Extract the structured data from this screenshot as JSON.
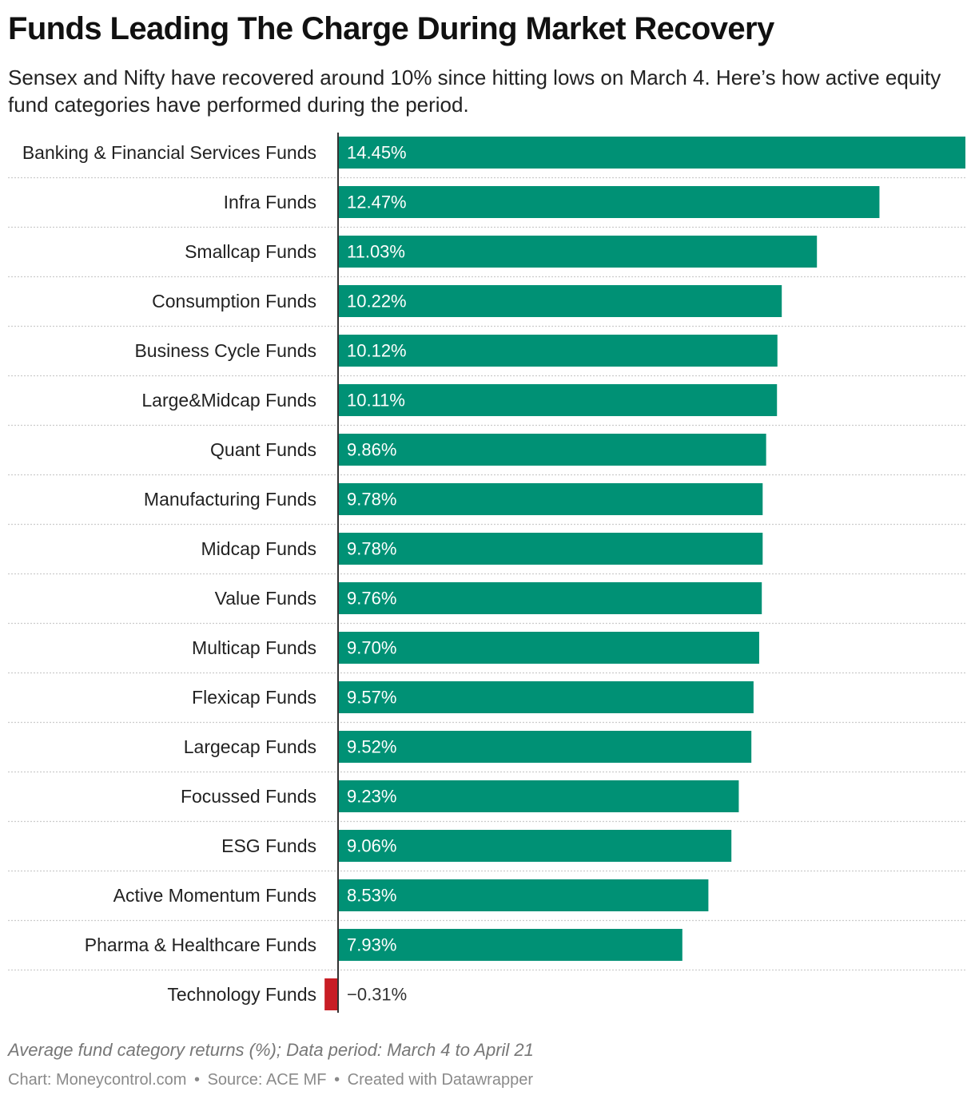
{
  "title": "Funds Leading The Charge During Market Recovery",
  "subtitle": "Sensex and Nifty have recovered around 10% since hitting lows on March 4. Here’s how active equity fund categories have performed during the period.",
  "notes": "Average fund category returns (%); Data period: March 4 to April 21",
  "footer": {
    "chart": "Chart: Moneycontrol.com",
    "source": "Source: ACE MF",
    "created": "Created with Datawrapper",
    "separator": "•"
  },
  "colors": {
    "positive": "#009175",
    "negative": "#c81d25",
    "axis": "#333333",
    "gridline": "#cccccc",
    "label_inside": "#ffffff",
    "label_outside": "#333333"
  },
  "chart_data": {
    "type": "bar",
    "orientation": "horizontal",
    "title": "Funds Leading The Charge During Market Recovery",
    "xlabel": "",
    "ylabel": "",
    "unit": "%",
    "xlim": [
      -0.31,
      14.45
    ],
    "categories": [
      "Banking & Financial Services Funds",
      "Infra Funds",
      "Smallcap Funds",
      "Consumption Funds",
      "Business Cycle Funds",
      "Large&Midcap Funds",
      "Quant Funds",
      "Manufacturing Funds",
      "Midcap Funds",
      "Value Funds",
      "Multicap Funds",
      "Flexicap Funds",
      "Largecap Funds",
      "Focussed Funds",
      "ESG Funds",
      "Active Momentum Funds",
      "Pharma & Healthcare Funds",
      "Technology Funds"
    ],
    "values": [
      14.45,
      12.47,
      11.03,
      10.22,
      10.12,
      10.11,
      9.86,
      9.78,
      9.78,
      9.76,
      9.7,
      9.57,
      9.52,
      9.23,
      9.06,
      8.53,
      7.93,
      -0.31
    ],
    "value_labels": [
      "14.45%",
      "12.47%",
      "11.03%",
      "10.22%",
      "10.12%",
      "10.11%",
      "9.86%",
      "9.78%",
      "9.78%",
      "9.76%",
      "9.70%",
      "9.57%",
      "9.52%",
      "9.23%",
      "9.06%",
      "8.53%",
      "7.93%",
      "−0.31%"
    ]
  }
}
